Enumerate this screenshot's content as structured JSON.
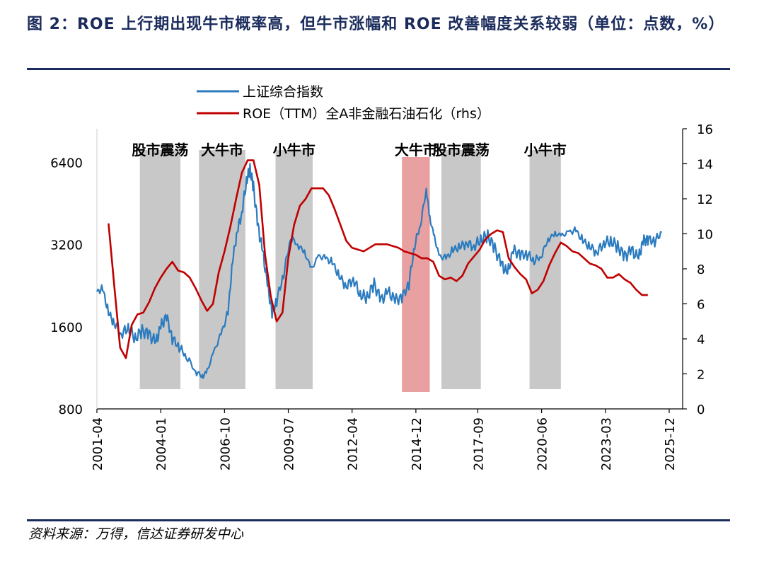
{
  "title": "图 2：ROE 上行期出现牛市概率高，但牛市涨幅和 ROE 改善幅度关系较弱（单位：点数，%）",
  "source": "资料来源：万得，信达证券研发中心",
  "colors": {
    "index_line": "#2b7bbf",
    "roe_line": "#c00000",
    "region_gray": "#c8c8c8",
    "region_red": "#e8a0a0",
    "heading": "#1b2c5c"
  },
  "chart_data": {
    "type": "line",
    "x_axis": {
      "range": [
        2001.25,
        2026.5
      ],
      "tick_values": [
        2001.25,
        2004.0,
        2006.75,
        2009.5,
        2012.25,
        2015.0,
        2017.67,
        2020.42,
        2023.17,
        2025.92
      ],
      "tick_labels": [
        "2001-04",
        "2004-01",
        "2006-10",
        "2009-07",
        "2012-04",
        "2014-12",
        "2017-09",
        "2020-06",
        "2023-03",
        "2025-12"
      ]
    },
    "y_left": {
      "scale": "log",
      "range": [
        800,
        8500
      ],
      "ticks": [
        800,
        1600,
        3200,
        6400
      ],
      "tick_labels": [
        "800",
        "1600",
        "3200",
        "6400"
      ]
    },
    "y_right": {
      "scale": "linear",
      "range": [
        0,
        16
      ],
      "ticks": [
        0,
        2,
        4,
        6,
        8,
        10,
        12,
        14,
        16
      ],
      "tick_labels": [
        "0",
        "2",
        "4",
        "6",
        "8",
        "10",
        "12",
        "14",
        "16"
      ]
    },
    "legend": {
      "placement": "top-left"
    },
    "series": [
      {
        "name": "上证综合指数",
        "axis": "left",
        "color": "#2b7bbf",
        "points": [
          [
            2001.25,
            2150
          ],
          [
            2001.5,
            2200
          ],
          [
            2001.75,
            1800
          ],
          [
            2002.0,
            1650
          ],
          [
            2002.3,
            1500
          ],
          [
            2002.6,
            1600
          ],
          [
            2002.9,
            1450
          ],
          [
            2003.2,
            1550
          ],
          [
            2003.5,
            1500
          ],
          [
            2003.8,
            1400
          ],
          [
            2004.0,
            1600
          ],
          [
            2004.25,
            1750
          ],
          [
            2004.5,
            1450
          ],
          [
            2004.8,
            1350
          ],
          [
            2005.1,
            1250
          ],
          [
            2005.5,
            1100
          ],
          [
            2005.8,
            1050
          ],
          [
            2006.0,
            1100
          ],
          [
            2006.3,
            1300
          ],
          [
            2006.6,
            1500
          ],
          [
            2006.9,
            1800
          ],
          [
            2007.1,
            2800
          ],
          [
            2007.3,
            3600
          ],
          [
            2007.5,
            4200
          ],
          [
            2007.7,
            5500
          ],
          [
            2007.85,
            6050
          ],
          [
            2008.0,
            5200
          ],
          [
            2008.2,
            3700
          ],
          [
            2008.4,
            3000
          ],
          [
            2008.6,
            2300
          ],
          [
            2008.8,
            1800
          ],
          [
            2009.0,
            2000
          ],
          [
            2009.3,
            2500
          ],
          [
            2009.6,
            3400
          ],
          [
            2009.9,
            3200
          ],
          [
            2010.2,
            3000
          ],
          [
            2010.5,
            2600
          ],
          [
            2010.8,
            2900
          ],
          [
            2011.1,
            2850
          ],
          [
            2011.4,
            2750
          ],
          [
            2011.7,
            2450
          ],
          [
            2012.0,
            2250
          ],
          [
            2012.3,
            2400
          ],
          [
            2012.6,
            2100
          ],
          [
            2012.9,
            2050
          ],
          [
            2013.2,
            2300
          ],
          [
            2013.5,
            2000
          ],
          [
            2013.8,
            2150
          ],
          [
            2014.1,
            2000
          ],
          [
            2014.4,
            2050
          ],
          [
            2014.7,
            2300
          ],
          [
            2014.95,
            3200
          ],
          [
            2015.2,
            3800
          ],
          [
            2015.45,
            5100
          ],
          [
            2015.6,
            4000
          ],
          [
            2015.8,
            3400
          ],
          [
            2016.0,
            2900
          ],
          [
            2016.3,
            2850
          ],
          [
            2016.6,
            3050
          ],
          [
            2016.9,
            3150
          ],
          [
            2017.2,
            3250
          ],
          [
            2017.5,
            3150
          ],
          [
            2017.8,
            3350
          ],
          [
            2018.1,
            3450
          ],
          [
            2018.4,
            3100
          ],
          [
            2018.7,
            2700
          ],
          [
            2018.95,
            2500
          ],
          [
            2019.2,
            3050
          ],
          [
            2019.5,
            2950
          ],
          [
            2019.8,
            2950
          ],
          [
            2020.1,
            2800
          ],
          [
            2020.4,
            2900
          ],
          [
            2020.7,
            3350
          ],
          [
            2021.0,
            3500
          ],
          [
            2021.3,
            3450
          ],
          [
            2021.6,
            3550
          ],
          [
            2021.9,
            3600
          ],
          [
            2022.2,
            3300
          ],
          [
            2022.5,
            3150
          ],
          [
            2022.8,
            3000
          ],
          [
            2023.1,
            3250
          ],
          [
            2023.4,
            3300
          ],
          [
            2023.7,
            3150
          ],
          [
            2024.0,
            2900
          ],
          [
            2024.3,
            3050
          ],
          [
            2024.6,
            2850
          ],
          [
            2024.8,
            3300
          ],
          [
            2025.0,
            3350
          ],
          [
            2025.3,
            3300
          ],
          [
            2025.6,
            3550
          ]
        ]
      },
      {
        "name": "ROE（TTM）全A非金融石油石化（rhs）",
        "axis": "right",
        "color": "#c00000",
        "points": [
          [
            2001.75,
            10.6
          ],
          [
            2002.0,
            7.0
          ],
          [
            2002.25,
            3.5
          ],
          [
            2002.5,
            2.9
          ],
          [
            2002.75,
            4.8
          ],
          [
            2003.0,
            5.4
          ],
          [
            2003.25,
            5.5
          ],
          [
            2003.5,
            6.1
          ],
          [
            2003.75,
            6.9
          ],
          [
            2004.0,
            7.5
          ],
          [
            2004.25,
            8.0
          ],
          [
            2004.5,
            8.4
          ],
          [
            2004.75,
            7.9
          ],
          [
            2005.0,
            7.8
          ],
          [
            2005.25,
            7.5
          ],
          [
            2005.5,
            6.9
          ],
          [
            2005.75,
            6.2
          ],
          [
            2006.0,
            5.6
          ],
          [
            2006.25,
            6.0
          ],
          [
            2006.5,
            7.8
          ],
          [
            2006.75,
            9.0
          ],
          [
            2007.0,
            10.4
          ],
          [
            2007.25,
            12.0
          ],
          [
            2007.5,
            13.5
          ],
          [
            2007.75,
            14.2
          ],
          [
            2008.0,
            14.2
          ],
          [
            2008.25,
            12.8
          ],
          [
            2008.5,
            8.8
          ],
          [
            2008.75,
            6.4
          ],
          [
            2009.0,
            5.0
          ],
          [
            2009.25,
            5.5
          ],
          [
            2009.5,
            8.6
          ],
          [
            2009.75,
            10.5
          ],
          [
            2010.0,
            11.6
          ],
          [
            2010.25,
            12.0
          ],
          [
            2010.5,
            12.6
          ],
          [
            2010.75,
            12.6
          ],
          [
            2011.0,
            12.6
          ],
          [
            2011.25,
            12.2
          ],
          [
            2011.5,
            11.4
          ],
          [
            2011.75,
            10.5
          ],
          [
            2012.0,
            9.6
          ],
          [
            2012.25,
            9.2
          ],
          [
            2012.5,
            9.1
          ],
          [
            2012.75,
            9.0
          ],
          [
            2013.0,
            9.2
          ],
          [
            2013.25,
            9.4
          ],
          [
            2013.5,
            9.4
          ],
          [
            2013.75,
            9.4
          ],
          [
            2014.0,
            9.3
          ],
          [
            2014.25,
            9.2
          ],
          [
            2014.5,
            9.0
          ],
          [
            2014.75,
            8.9
          ],
          [
            2015.0,
            8.8
          ],
          [
            2015.25,
            8.6
          ],
          [
            2015.5,
            8.6
          ],
          [
            2015.75,
            8.4
          ],
          [
            2016.0,
            7.6
          ],
          [
            2016.25,
            7.4
          ],
          [
            2016.5,
            7.5
          ],
          [
            2016.75,
            7.3
          ],
          [
            2017.0,
            7.6
          ],
          [
            2017.25,
            8.3
          ],
          [
            2017.5,
            8.7
          ],
          [
            2017.75,
            9.1
          ],
          [
            2018.0,
            9.7
          ],
          [
            2018.25,
            10.0
          ],
          [
            2018.5,
            10.2
          ],
          [
            2018.75,
            10.1
          ],
          [
            2019.0,
            8.6
          ],
          [
            2019.25,
            8.1
          ],
          [
            2019.5,
            7.7
          ],
          [
            2019.75,
            7.4
          ],
          [
            2020.0,
            6.6
          ],
          [
            2020.25,
            6.8
          ],
          [
            2020.5,
            7.3
          ],
          [
            2020.75,
            8.2
          ],
          [
            2021.0,
            8.9
          ],
          [
            2021.25,
            9.5
          ],
          [
            2021.5,
            9.3
          ],
          [
            2021.75,
            9.0
          ],
          [
            2022.0,
            8.9
          ],
          [
            2022.25,
            8.6
          ],
          [
            2022.5,
            8.3
          ],
          [
            2022.75,
            8.2
          ],
          [
            2023.0,
            8.0
          ],
          [
            2023.25,
            7.5
          ],
          [
            2023.5,
            7.5
          ],
          [
            2023.75,
            7.7
          ],
          [
            2024.0,
            7.4
          ],
          [
            2024.25,
            7.2
          ],
          [
            2024.5,
            6.8
          ],
          [
            2024.75,
            6.5
          ],
          [
            2025.0,
            6.5
          ]
        ]
      }
    ],
    "regions": [
      {
        "label": "股市震荡",
        "x_start": 2003.1,
        "x_end": 2004.85,
        "color": "gray"
      },
      {
        "label": "大牛市",
        "x_start": 2005.65,
        "x_end": 2007.65,
        "color": "gray"
      },
      {
        "label": "小牛市",
        "x_start": 2008.95,
        "x_end": 2010.55,
        "color": "gray"
      },
      {
        "label": "大牛市",
        "x_start": 2014.4,
        "x_end": 2015.6,
        "color": "red"
      },
      {
        "label": "股市震荡",
        "x_start": 2016.1,
        "x_end": 2017.8,
        "color": "gray"
      },
      {
        "label": "小牛市",
        "x_start": 2019.9,
        "x_end": 2021.25,
        "color": "gray"
      }
    ]
  }
}
